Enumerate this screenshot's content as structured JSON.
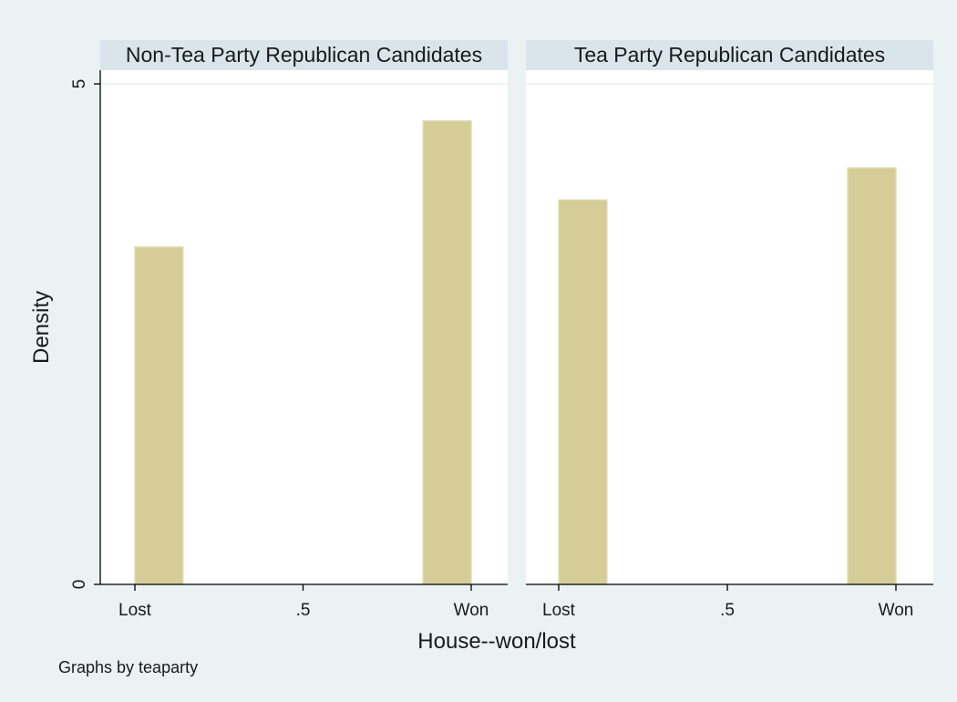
{
  "chart_data": {
    "type": "bar",
    "subtype": "histogram-by-group",
    "colors": {
      "bar": "#d5cc98",
      "background": "#eaf2f3",
      "panel_header": "#d9e5eb"
    },
    "ylabel": "Density",
    "xlabel": "House--won/lost",
    "ylim": [
      0,
      5
    ],
    "yticks": [
      {
        "value": 0,
        "label": "0"
      },
      {
        "value": 5,
        "label": "5"
      }
    ],
    "xlim": [
      0,
      1
    ],
    "xticks": [
      {
        "value": 0,
        "label": "Lost"
      },
      {
        "value": 0.5,
        "label": ".5"
      },
      {
        "value": 1,
        "label": "Won"
      }
    ],
    "bar_width": 0.143,
    "grid": true,
    "note": "Graphs by teaparty",
    "panels": [
      {
        "title": "Non-Tea Party Republican Candidates",
        "bars": [
          {
            "x": 0,
            "value": 3.37
          },
          {
            "x": 1,
            "value": 4.63
          }
        ]
      },
      {
        "title": "Tea Party Republican Candidates",
        "bars": [
          {
            "x": 0,
            "value": 3.84
          },
          {
            "x": 1,
            "value": 4.16
          }
        ]
      }
    ]
  }
}
